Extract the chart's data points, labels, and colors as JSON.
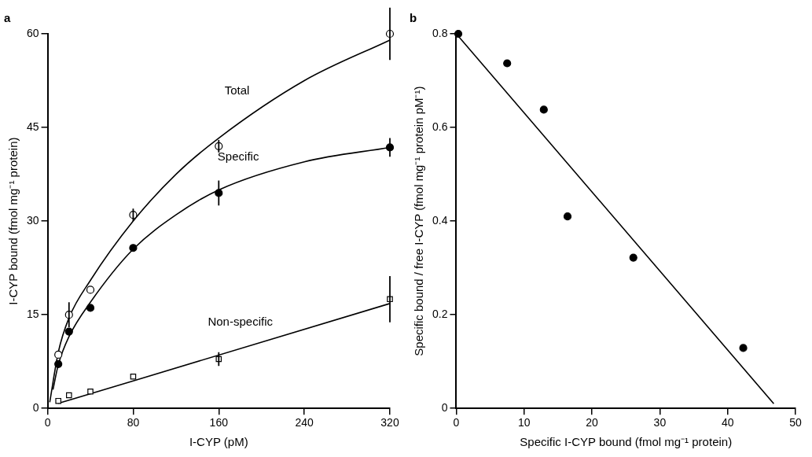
{
  "chart_data": [
    {
      "type": "scatter",
      "title": "a",
      "xlabel": "I-CYP (pM)",
      "ylabel": "I-CYP bound (fmol mg⁻¹ protein)",
      "xlim": [
        0,
        320
      ],
      "xticks": [
        0,
        80,
        160,
        240,
        320
      ],
      "ylim": [
        0,
        60
      ],
      "yticks": [
        0,
        15,
        30,
        45,
        60
      ],
      "grid": false,
      "legend": false,
      "series": [
        {
          "marker": "circle",
          "color": "#ffffff",
          "x": [
            10,
            20,
            40,
            80,
            160,
            320
          ],
          "values": [
            8.6,
            15,
            19,
            31,
            42,
            60
          ],
          "errors": [
            null,
            2,
            null,
            1,
            1,
            4.2
          ]
        },
        {
          "marker": "circle",
          "color": "#000000",
          "x": [
            10,
            20,
            40,
            80,
            160,
            320
          ],
          "values": [
            7.1,
            12.3,
            16.1,
            25.7,
            34.5,
            41.8
          ],
          "errors": [
            null,
            null,
            null,
            null,
            2,
            1.5
          ]
        },
        {
          "marker": "square",
          "color": "#ffffff",
          "x": [
            10,
            20,
            40,
            80,
            160,
            320
          ],
          "values": [
            1.2,
            2.1,
            2.7,
            5.1,
            7.9,
            17.5
          ],
          "errors": [
            null,
            null,
            null,
            null,
            1.1,
            3.7
          ]
        },
        {
          "type": "line",
          "name": "Total",
          "marker": "none",
          "color": "#000000",
          "x": [
            2,
            10,
            20,
            40,
            80,
            120,
            160,
            240,
            320
          ],
          "values": [
            1,
            9,
            14.5,
            20.5,
            30,
            37.5,
            43.3,
            52.5,
            59
          ]
        },
        {
          "type": "line",
          "name": "Specific",
          "marker": "none",
          "color": "#000000",
          "x": [
            5,
            10,
            20,
            40,
            80,
            120,
            160,
            240,
            320
          ],
          "values": [
            3,
            7,
            11.5,
            17,
            25.5,
            31,
            35,
            39.5,
            41.8
          ]
        },
        {
          "type": "line",
          "name": "Non-specific",
          "marker": "none",
          "color": "#000000",
          "x": [
            10,
            320
          ],
          "values": [
            0.8,
            16.8
          ]
        }
      ]
    },
    {
      "type": "scatter",
      "title": "b",
      "xlabel": "Specific I-CYP bound (fmol mg⁻¹ protein)",
      "ylabel": "Specific bound / free I-CYP (fmol mg⁻¹ protein pM⁻¹)",
      "xlim": [
        0,
        50
      ],
      "xticks": [
        0,
        10,
        20,
        30,
        40,
        50
      ],
      "ylim": [
        0,
        0.8
      ],
      "yticks": [
        0,
        0.2,
        0.4,
        0.6,
        0.8
      ],
      "grid": false,
      "legend": false,
      "series": [
        {
          "marker": "circle",
          "color": "#000000",
          "x": [
            0.3,
            7.5,
            12.9,
            16.4,
            26.1,
            42.3
          ],
          "values": [
            0.8,
            0.737,
            0.638,
            0.41,
            0.322,
            0.129
          ]
        },
        {
          "type": "line",
          "marker": "none",
          "color": "#000000",
          "x": [
            0,
            46.8
          ],
          "values": [
            0.8,
            0.01
          ]
        }
      ]
    }
  ]
}
